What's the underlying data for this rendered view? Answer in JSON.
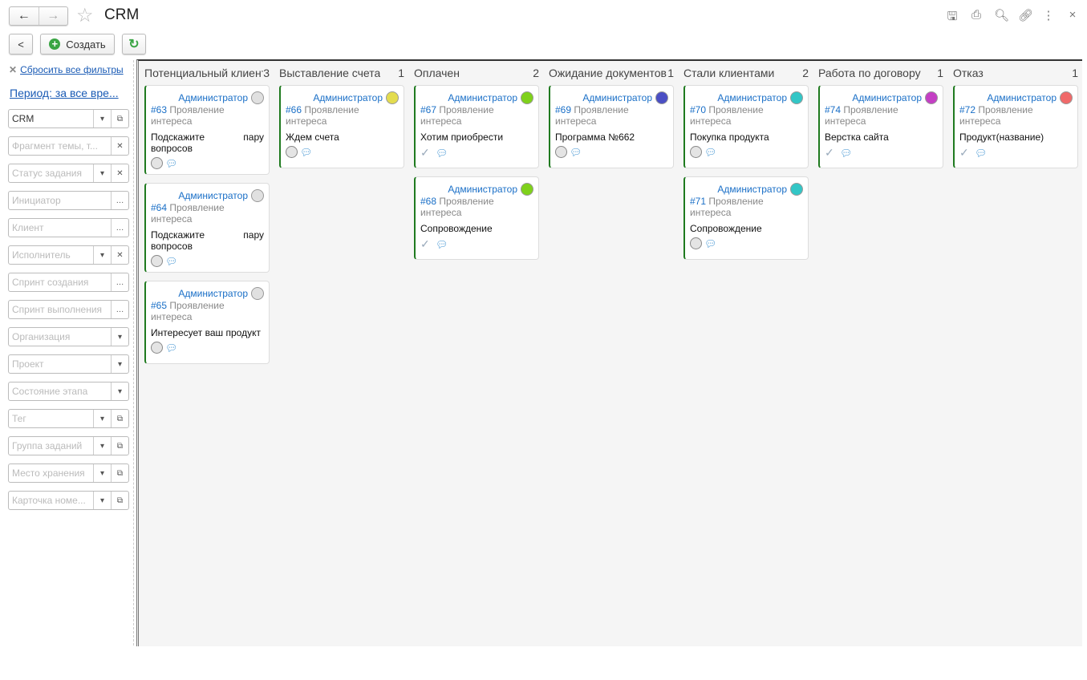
{
  "window": {
    "title": "CRM"
  },
  "toolbar": {
    "back_icon": "←",
    "forward_icon": "→",
    "create_label": "Создать",
    "collapse_icon": "<",
    "refresh_icon": "↻"
  },
  "filters": {
    "reset_label": "Сбросить все фильтры",
    "period_label": "Период: за все вре...",
    "fields": [
      {
        "text": "CRM",
        "is_value": true,
        "buttons": [
          "dropdown",
          "open"
        ]
      },
      {
        "text": "Фрагмент темы, т...",
        "buttons": [
          "clear"
        ]
      },
      {
        "text": "Статус задания",
        "buttons": [
          "dropdown",
          "clear"
        ]
      },
      {
        "text": "Инициатор",
        "buttons": [
          "select"
        ]
      },
      {
        "text": "Клиент",
        "buttons": [
          "select"
        ]
      },
      {
        "text": "Исполнитель",
        "buttons": [
          "dropdown",
          "clear"
        ]
      },
      {
        "text": "Спринт создания",
        "buttons": [
          "select"
        ]
      },
      {
        "text": "Спринт выполнения",
        "buttons": [
          "select"
        ]
      },
      {
        "text": "Организация",
        "buttons": [
          "dropdown"
        ]
      },
      {
        "text": "Проект",
        "buttons": [
          "dropdown"
        ]
      },
      {
        "text": "Состояние этапа",
        "buttons": [
          "dropdown"
        ]
      },
      {
        "text": "Тег",
        "buttons": [
          "dropdown",
          "open"
        ]
      },
      {
        "text": "Группа заданий",
        "buttons": [
          "dropdown",
          "open"
        ]
      },
      {
        "text": "Место хранения",
        "buttons": [
          "dropdown",
          "open"
        ]
      },
      {
        "text": "Карточка номе...",
        "buttons": [
          "dropdown",
          "open"
        ]
      }
    ]
  },
  "board": {
    "columns": [
      {
        "title": "Потенциальный клиент",
        "count": "3",
        "cards": [
          {
            "author": "Администратор",
            "num": "#63",
            "type": "Проявление интереса",
            "title": "Подскажите пару вопросов",
            "color": "#e0e0e0",
            "done": false
          },
          {
            "author": "Администратор",
            "num": "#64",
            "type": "Проявление интереса",
            "title": "Подскажите пару вопросов",
            "color": "#e0e0e0",
            "done": false
          },
          {
            "author": "Администратор",
            "num": "#65",
            "type": "Проявление интереса",
            "title": "Интересует ваш продукт",
            "color": "#e0e0e0",
            "done": false
          }
        ]
      },
      {
        "title": "Выставление счета",
        "count": "1",
        "cards": [
          {
            "author": "Администратор",
            "num": "#66",
            "type": "Проявление интереса",
            "title": "Ждем счета",
            "color": "#e3dc4f",
            "done": false
          }
        ]
      },
      {
        "title": "Оплачен",
        "count": "2",
        "cards": [
          {
            "author": "Администратор",
            "num": "#67",
            "type": "Проявление интереса",
            "title": "Хотим приобрести",
            "color": "#7fd11b",
            "done": true
          },
          {
            "author": "Администратор",
            "num": "#68",
            "type": "Проявление интереса",
            "title": "Сопровождение",
            "color": "#7fd11b",
            "done": true
          }
        ]
      },
      {
        "title": "Ожидание документов",
        "count": "1",
        "cards": [
          {
            "author": "Администратор",
            "num": "#69",
            "type": "Проявление интереса",
            "title": "Программа №662",
            "color": "#4b4fc4",
            "done": false
          }
        ]
      },
      {
        "title": "Стали клиентами",
        "count": "2",
        "cards": [
          {
            "author": "Администратор",
            "num": "#70",
            "type": "Проявление интереса",
            "title": "Покупка продукта",
            "color": "#33c6c6",
            "done": false
          },
          {
            "author": "Администратор",
            "num": "#71",
            "type": "Проявление интереса",
            "title": "Сопровождение",
            "color": "#33c6c6",
            "done": false
          }
        ]
      },
      {
        "title": "Работа по договору",
        "count": "1",
        "cards": [
          {
            "author": "Администратор",
            "num": "#74",
            "type": "Проявление интереса",
            "title": "Верстка сайта",
            "color": "#c43fc4",
            "done": true
          }
        ]
      },
      {
        "title": "Отказ",
        "count": "1",
        "cards": [
          {
            "author": "Администратор",
            "num": "#72",
            "type": "Проявление интереса",
            "title": "Продукт(название)",
            "color": "#f06a6a",
            "done": true
          }
        ]
      }
    ]
  }
}
